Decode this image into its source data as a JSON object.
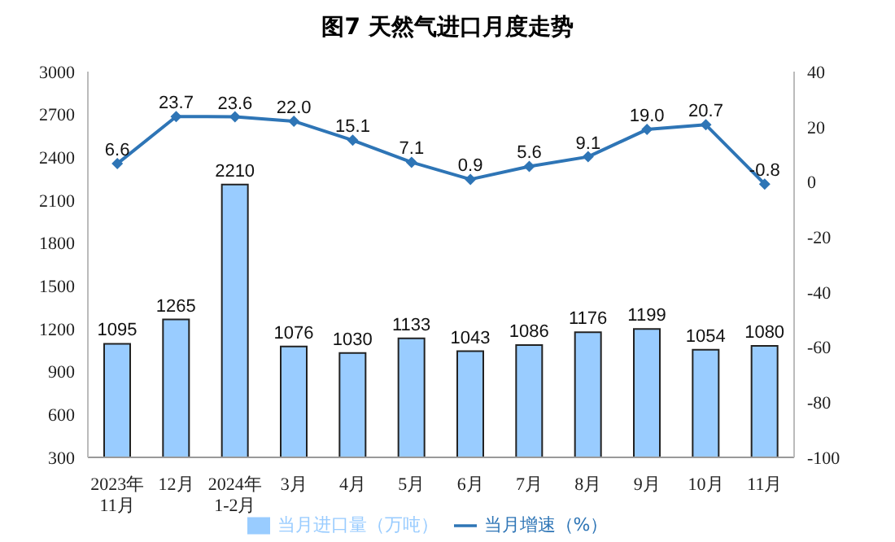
{
  "chart_data": {
    "type": "bar",
    "title": "图7  天然气进口月度走势",
    "categories": [
      "2023年\n11月",
      "12月",
      "2024年\n1-2月",
      "3月",
      "4月",
      "5月",
      "6月",
      "7月",
      "8月",
      "9月",
      "10月",
      "11月"
    ],
    "series": [
      {
        "name": "当月进口量（万吨）",
        "color": "#99ccff",
        "values": [
          1095,
          1265,
          2210,
          1076,
          1030,
          1133,
          1043,
          1086,
          1176,
          1199,
          1054,
          1080
        ],
        "value_labels": [
          "1095",
          "1265",
          "2210",
          "1076",
          "1030",
          "1133",
          "1043",
          "1086",
          "1176",
          "1199",
          "1054",
          "1080"
        ]
      },
      {
        "name": "当月增速（%）",
        "type": "line",
        "axis": "y2",
        "color": "#2e75b6",
        "marker": "diamond",
        "values": [
          6.6,
          23.7,
          23.6,
          22.0,
          15.1,
          7.1,
          0.9,
          5.6,
          9.1,
          19.0,
          20.7,
          -0.8
        ],
        "value_labels": [
          "6.6",
          "23.7",
          "23.6",
          "22.0",
          "15.1",
          "7.1",
          "0.9",
          "5.6",
          "9.1",
          "19.0",
          "20.7",
          "-0.8"
        ]
      }
    ],
    "ylim": [
      300,
      3000
    ],
    "yticks": [
      300,
      600,
      900,
      1200,
      1500,
      1800,
      2100,
      2400,
      2700,
      3000
    ],
    "y2lim": [
      -100,
      40
    ],
    "y2ticks": [
      -100,
      -80,
      -60,
      -40,
      -20,
      0,
      20,
      40
    ],
    "grid": false,
    "legend": "bottom"
  }
}
